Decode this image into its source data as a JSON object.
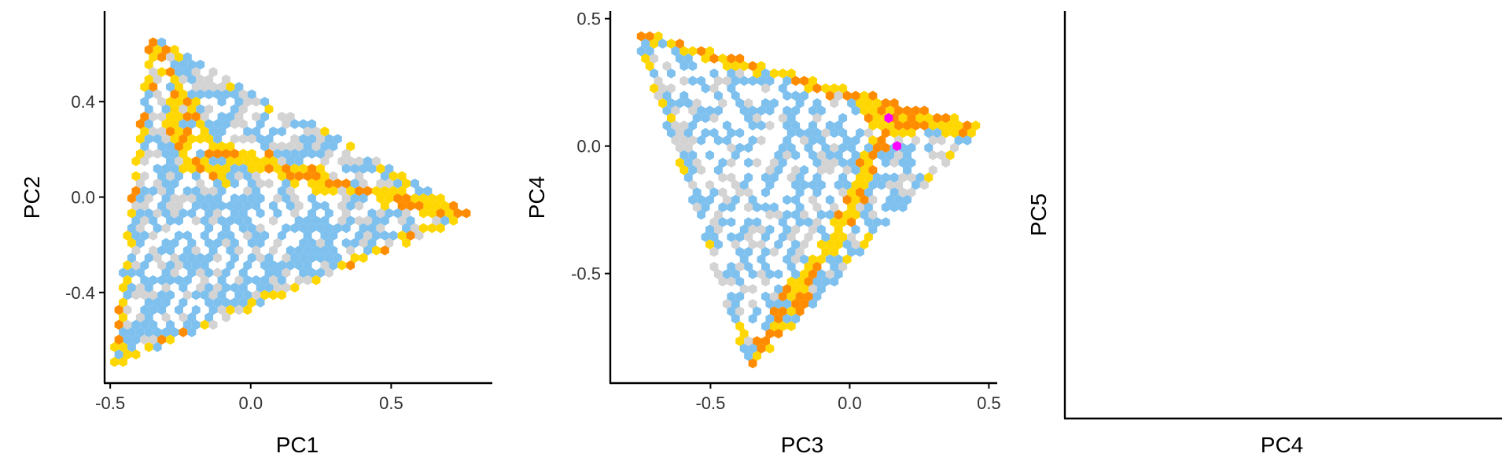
{
  "colors": {
    "grey": "#d3d3d3",
    "blue": "#7ec0ee",
    "yellow": "#ffd700",
    "orange": "#ff8c00",
    "magenta": "#ff00ff"
  },
  "chart_data": [
    {
      "type": "scatter",
      "subtype": "hexbin",
      "title": "",
      "xlabel": "PC1",
      "ylabel": "PC2",
      "xlim": [
        -0.52,
        0.86
      ],
      "ylim": [
        -0.78,
        0.78
      ],
      "xticks": [
        {
          "v": -0.5,
          "label": "-0.5"
        },
        {
          "v": 0.0,
          "label": "0.0"
        },
        {
          "v": 0.5,
          "label": "0.5"
        }
      ],
      "yticks": [
        {
          "v": -0.4,
          "label": "-0.4"
        },
        {
          "v": 0.0,
          "label": "0.0"
        },
        {
          "v": 0.4,
          "label": "0.4"
        }
      ],
      "grid": false,
      "hexbin": {
        "vertices": [
          [
            -0.36,
            0.68
          ],
          [
            -0.5,
            -0.72
          ],
          [
            0.8,
            -0.07
          ]
        ],
        "density": 0.66,
        "seed": 7,
        "lines": [
          {
            "path": [
              [
                -0.36,
                0.68
              ],
              [
                -0.22,
                0.38
              ],
              [
                -0.14,
                0.22
              ],
              [
                0.1,
                0.12
              ],
              [
                0.4,
                0.02
              ],
              [
                0.8,
                -0.07
              ]
            ],
            "weight": 0.9
          },
          {
            "path": [
              [
                -0.36,
                0.68
              ],
              [
                -0.5,
                -0.72
              ]
            ],
            "weight": 0.45
          },
          {
            "path": [
              [
                -0.5,
                -0.72
              ],
              [
                0.2,
                -0.4
              ],
              [
                0.8,
                -0.07
              ]
            ],
            "weight": 0.4
          },
          {
            "path": [
              [
                -0.28,
                0.36
              ],
              [
                -0.22,
                0.14
              ],
              [
                -0.1,
                0.1
              ]
            ],
            "weight": 0.8
          }
        ],
        "highlights": []
      }
    },
    {
      "type": "scatter",
      "subtype": "hexbin",
      "title": "",
      "xlabel": "PC3",
      "ylabel": "PC4",
      "xlim": [
        -0.86,
        0.53
      ],
      "ylim": [
        -0.93,
        0.53
      ],
      "xticks": [
        {
          "v": -0.5,
          "label": "-0.5"
        },
        {
          "v": 0.0,
          "label": "0.0"
        },
        {
          "v": 0.5,
          "label": "0.5"
        }
      ],
      "yticks": [
        {
          "v": -0.5,
          "label": "-0.5"
        },
        {
          "v": 0.0,
          "label": "0.0"
        },
        {
          "v": 0.5,
          "label": "0.5"
        }
      ],
      "grid": false,
      "hexbin": {
        "vertices": [
          [
            -0.78,
            0.46
          ],
          [
            0.48,
            0.08
          ],
          [
            -0.36,
            -0.88
          ]
        ],
        "density": 0.55,
        "seed": 21,
        "lines": [
          {
            "path": [
              [
                -0.78,
                0.46
              ],
              [
                -0.3,
                0.32
              ],
              [
                0.05,
                0.18
              ],
              [
                0.48,
                0.08
              ]
            ],
            "weight": 0.85
          },
          {
            "path": [
              [
                0.1,
                0.1
              ],
              [
                0.48,
                0.08
              ]
            ],
            "weight": 1.0
          },
          {
            "path": [
              [
                0.12,
                0.04
              ],
              [
                -0.05,
                -0.35
              ],
              [
                -0.2,
                -0.6
              ],
              [
                -0.36,
                -0.88
              ]
            ],
            "weight": 0.8
          }
        ],
        "highlights": [
          [
            0.14,
            0.11
          ],
          [
            0.17,
            0.0
          ]
        ]
      }
    },
    {
      "type": "scatter",
      "title": "",
      "xlabel": "PC4",
      "ylabel": "PC5",
      "xticks": [],
      "yticks": [],
      "grid": false,
      "points": []
    }
  ]
}
